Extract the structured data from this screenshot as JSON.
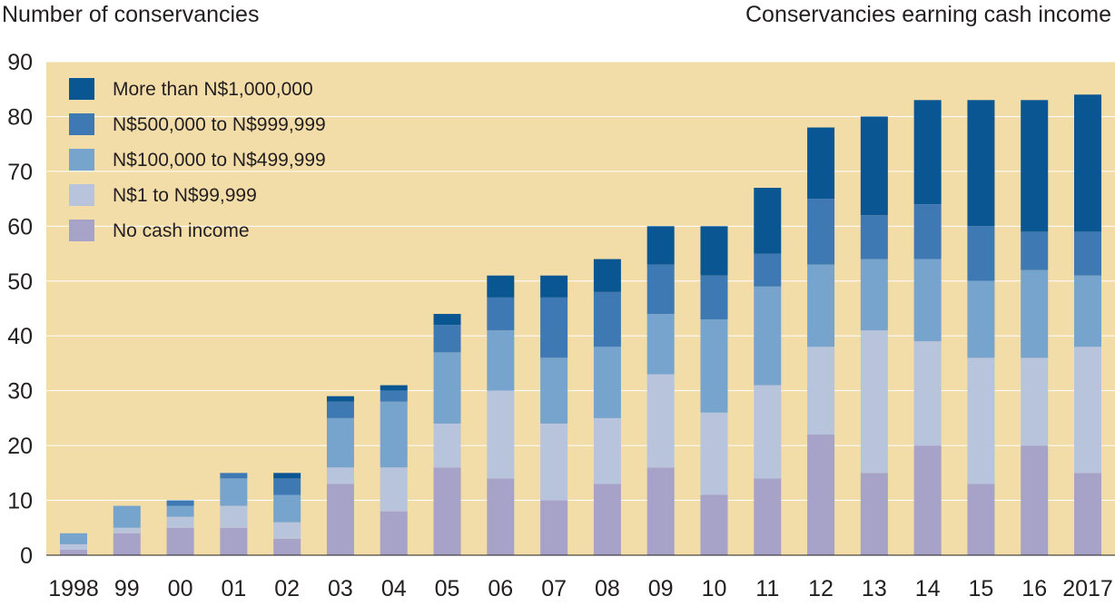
{
  "chart_data": {
    "type": "bar",
    "stacked": true,
    "ylabel": "Number of conservancies",
    "title": "Conservancies earning cash income",
    "ylim": [
      0,
      90
    ],
    "yticks": [
      0,
      10,
      20,
      30,
      40,
      50,
      60,
      70,
      80,
      90
    ],
    "categories": [
      "1998",
      "99",
      "00",
      "01",
      "02",
      "03",
      "04",
      "05",
      "06",
      "07",
      "08",
      "09",
      "10",
      "11",
      "12",
      "13",
      "14",
      "15",
      "16",
      "2017"
    ],
    "series": [
      {
        "name": "No cash income",
        "color": "#a7a2c8",
        "values": [
          1,
          4,
          5,
          5,
          3,
          13,
          8,
          16,
          14,
          10,
          13,
          16,
          11,
          14,
          22,
          15,
          20,
          13,
          20,
          15
        ]
      },
      {
        "name": "N$1 to N$99,999",
        "color": "#b8c3dc",
        "values": [
          1,
          1,
          2,
          4,
          3,
          3,
          8,
          8,
          16,
          14,
          12,
          17,
          15,
          17,
          16,
          26,
          19,
          23,
          16,
          23
        ]
      },
      {
        "name": "N$100,000 to N$499,999",
        "color": "#77a4cd",
        "values": [
          2,
          4,
          2,
          5,
          5,
          9,
          12,
          13,
          11,
          12,
          13,
          11,
          17,
          18,
          15,
          13,
          15,
          14,
          16,
          13
        ]
      },
      {
        "name": "N$500,000 to N$999,999",
        "color": "#3e79b4",
        "values": [
          0,
          0,
          1,
          1,
          3,
          3,
          2,
          5,
          6,
          11,
          10,
          9,
          8,
          6,
          12,
          8,
          10,
          10,
          7,
          8
        ]
      },
      {
        "name": "More than N$1,000,000",
        "color": "#0a5692",
        "values": [
          0,
          0,
          0,
          0,
          1,
          1,
          1,
          2,
          4,
          4,
          6,
          7,
          9,
          12,
          13,
          18,
          19,
          23,
          24,
          25
        ]
      }
    ],
    "legend_order": [
      4,
      3,
      2,
      1,
      0
    ],
    "background": "#f2dca8",
    "grid_color": "#ffffff"
  }
}
